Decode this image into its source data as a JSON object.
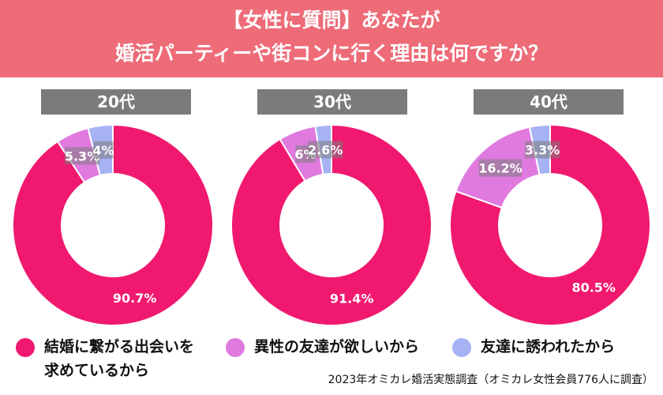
{
  "title": {
    "line1": "【女性に質問】あなたが",
    "line2": "婚活パーティーや街コンに行く理由は何ですか？"
  },
  "colors": {
    "header_bg": "#ee6b78",
    "series": [
      "#f0196f",
      "#e07adf",
      "#a7b2f5"
    ],
    "age_label_bg": "#7b7b7b"
  },
  "legend": [
    {
      "lines": [
        "結婚に繋がる出会いを",
        "求めているから"
      ],
      "color": "#f0196f"
    },
    {
      "lines": [
        "異性の友達が欲しいから"
      ],
      "color": "#e07adf"
    },
    {
      "lines": [
        "友達に誘われたから"
      ],
      "color": "#a7b2f5"
    }
  ],
  "source": "2023年オミカレ婚活実態調査（オミカレ女性会員776人に調査）",
  "chart_data": [
    {
      "type": "pie",
      "title": "20代",
      "categories": [
        "結婚に繋がる出会いを求めているから",
        "異性の友達が欲しいから",
        "友達に誘われたから"
      ],
      "values": [
        90.7,
        5.3,
        4
      ],
      "labels": [
        "90.7%",
        "5.3%",
        "4%"
      ]
    },
    {
      "type": "pie",
      "title": "30代",
      "categories": [
        "結婚に繋がる出会いを求めているから",
        "異性の友達が欲しいから",
        "友達に誘われたから"
      ],
      "values": [
        91.4,
        6,
        2.6
      ],
      "labels": [
        "91.4%",
        "6%",
        "2.6%"
      ]
    },
    {
      "type": "pie",
      "title": "40代",
      "categories": [
        "結婚に繋がる出会いを求めているから",
        "異性の友達が欲しいから",
        "友達に誘われたから"
      ],
      "values": [
        80.5,
        16.2,
        3.3
      ],
      "labels": [
        "80.5%",
        "16.2%",
        "3.3%"
      ]
    }
  ]
}
